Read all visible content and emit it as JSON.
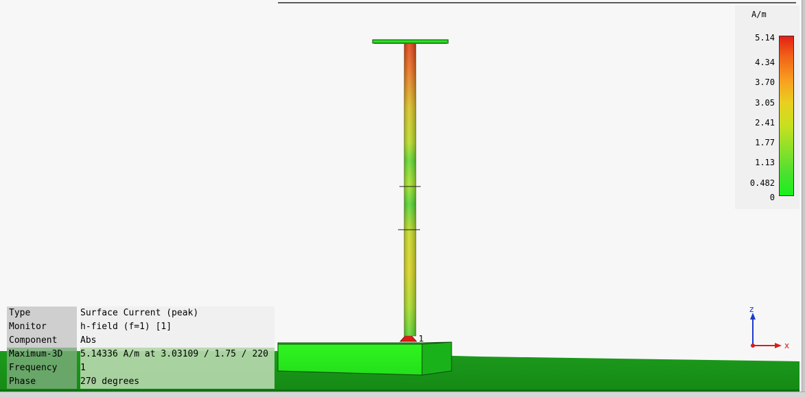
{
  "legend": {
    "unit": "A/m",
    "ticks": [
      "5.14",
      "4.34",
      "3.70",
      "3.05",
      "2.41",
      "1.77",
      "1.13",
      "0.482",
      "0"
    ]
  },
  "info": {
    "rows": [
      {
        "key": "Type",
        "value": "Surface Current (peak)"
      },
      {
        "key": "Monitor",
        "value": "h-field (f=1) [1]"
      },
      {
        "key": "Component",
        "value": "Abs"
      },
      {
        "key": "Maximum-3D",
        "value": "5.14336 A/m at 3.03109 / 1.75 / 220"
      },
      {
        "key": "Frequency",
        "value": "1"
      },
      {
        "key": "Phase",
        "value": "270 degrees"
      }
    ]
  },
  "port_label": "1",
  "axes": {
    "z": "z",
    "x": "x"
  },
  "colors": {
    "ground": "#1aa51a",
    "box_top": "#2af01c",
    "box_front": "#1ed818",
    "max_red": "#e41f15",
    "min_green": "#18f01c",
    "axis_z": "#1a3cc8",
    "axis_x": "#d81c1c"
  }
}
